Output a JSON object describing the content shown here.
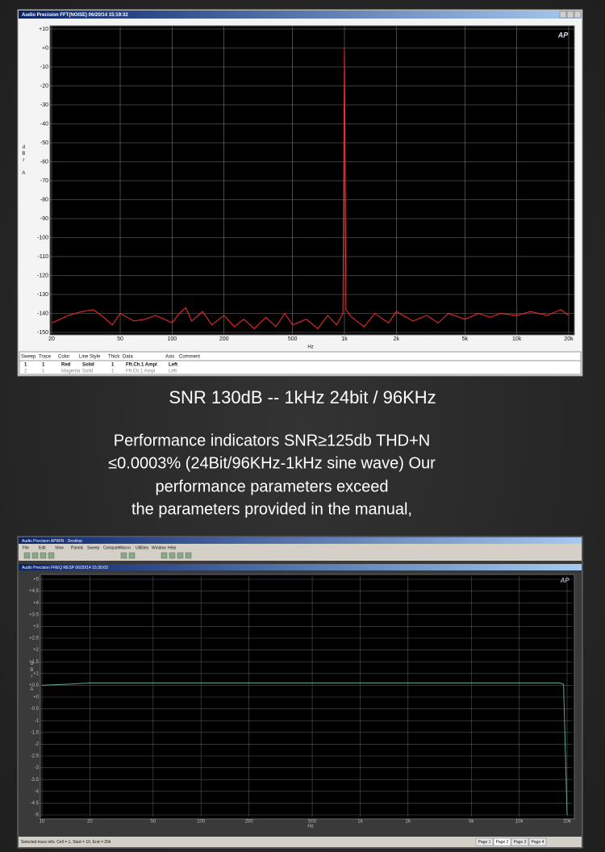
{
  "top_window": {
    "title": "Audio Precision FFT(NOISE) 06/20/14 15:19:32",
    "logo": "AP",
    "legend_table": {
      "header": [
        "Sweep",
        "Trace",
        "Color",
        "Line Style",
        "Thick",
        "Data",
        "Axis",
        "Comment"
      ],
      "rows": [
        [
          "1",
          "1",
          "Red",
          "Solid",
          "1",
          "Fft.Ch.1 Ampl",
          "Left"
        ],
        [
          "2",
          "1",
          "Magenta",
          "Solid",
          "1",
          "Fft.Ch.1 Ampl",
          "Left"
        ]
      ]
    }
  },
  "caption": "SNR 130dB -- 1kHz 24bit / 96KHz",
  "paragraph": {
    "lines": [
      "Performance indicators SNR≥125db THD+N",
      "≤0.0003% (24Bit/96KHz-1kHz sine wave) Our",
      "performance parameters exceed",
      "the parameters provided in the manual,"
    ]
  },
  "bottom_window": {
    "app_title": "Audio Precision APWIN - Desktop",
    "menu": [
      "File",
      "Edit",
      "View",
      "Panels",
      "Sweep",
      "Compute",
      "Macro",
      "Utilities",
      "Window",
      "Help"
    ],
    "plot_title": "Audio Precision FREQ RESP 06/20/14 15:30:03",
    "logo": "AP",
    "status": "Selected trace info: Cell = 1, Start = 10, End = 20k",
    "page_tabs": [
      "Page 1",
      "Page 2",
      "Page 3",
      "Page 4"
    ]
  },
  "chart_data": [
    {
      "type": "line",
      "xlabel": "Hz",
      "ylabel": "dBr A",
      "color": "#ff2a2a",
      "log_x": true,
      "grid": true,
      "x": [
        20,
        25,
        30,
        35,
        40,
        45,
        50,
        60,
        70,
        80,
        90,
        100,
        110,
        120,
        130,
        150,
        170,
        200,
        230,
        260,
        300,
        350,
        400,
        450,
        500,
        600,
        700,
        800,
        900,
        980,
        1000,
        1020,
        1100,
        1300,
        1500,
        1800,
        2000,
        2500,
        3000,
        3500,
        4000,
        5000,
        6000,
        7000,
        8000,
        10000,
        12000,
        15000,
        18000,
        20000
      ],
      "values": [
        -145,
        -141,
        -139,
        -138,
        -142,
        -146,
        -140,
        -144,
        -143,
        -141,
        -143,
        -145,
        -140,
        -137,
        -144,
        -139,
        -146,
        -141,
        -147,
        -143,
        -148,
        -142,
        -147,
        -140,
        -146,
        -143,
        -148,
        -141,
        -146,
        -140,
        0,
        -138,
        -142,
        -147,
        -140,
        -145,
        -139,
        -144,
        -141,
        -145,
        -140,
        -143,
        -140,
        -142,
        -140,
        -141,
        -139,
        -141,
        -138,
        -141
      ],
      "xlim": [
        20,
        20000
      ],
      "ylim": [
        -150,
        10
      ],
      "xticks": [
        20,
        50,
        100,
        200,
        500,
        {
          "value": 1000,
          "label": "1k"
        },
        {
          "value": 2000,
          "label": "2k"
        },
        {
          "value": 5000,
          "label": "5k"
        },
        {
          "value": 10000,
          "label": "10k"
        },
        {
          "value": 20000,
          "label": "20k"
        }
      ],
      "yticks": [
        {
          "value": 10,
          "label": "+10"
        },
        {
          "value": 0,
          "label": "+0"
        },
        -10,
        -20,
        -30,
        -40,
        -50,
        -60,
        -70,
        -80,
        -90,
        -100,
        -110,
        -120,
        -130,
        -140,
        -150
      ]
    },
    {
      "type": "line",
      "xlabel": "Hz",
      "ylabel": "dBr A",
      "color": "#5fa896",
      "log_x": true,
      "grid": true,
      "x": [
        10,
        15,
        20,
        50,
        100,
        1000,
        10000,
        18000,
        19000,
        20000
      ],
      "values": [
        0.5,
        0.55,
        0.6,
        0.6,
        0.6,
        0.6,
        0.6,
        0.6,
        0.55,
        -5
      ],
      "xlim": [
        10,
        20000
      ],
      "ylim": [
        -5,
        5
      ],
      "xticks": [
        10,
        20,
        50,
        100,
        200,
        500,
        {
          "value": 1000,
          "label": "1k"
        },
        {
          "value": 2000,
          "label": "2k"
        },
        {
          "value": 5000,
          "label": "5k"
        },
        {
          "value": 10000,
          "label": "10k"
        },
        {
          "value": 20000,
          "label": "20k"
        }
      ],
      "yticks": [
        {
          "value": 5,
          "label": "+5"
        },
        {
          "value": 4.5,
          "label": "+4.5"
        },
        {
          "value": 4,
          "label": "+4"
        },
        {
          "value": 3.5,
          "label": "+3.5"
        },
        {
          "value": 3,
          "label": "+3"
        },
        {
          "value": 2.5,
          "label": "+2.5"
        },
        {
          "value": 2,
          "label": "+2"
        },
        {
          "value": 1.5,
          "label": "+1.5"
        },
        {
          "value": 1,
          "label": "+1"
        },
        {
          "value": 0.5,
          "label": "+0.5"
        },
        {
          "value": 0,
          "label": "+0"
        },
        -0.5,
        -1,
        -1.5,
        -2,
        -2.5,
        -3,
        -3.5,
        -4,
        -4.5,
        -5
      ]
    }
  ]
}
